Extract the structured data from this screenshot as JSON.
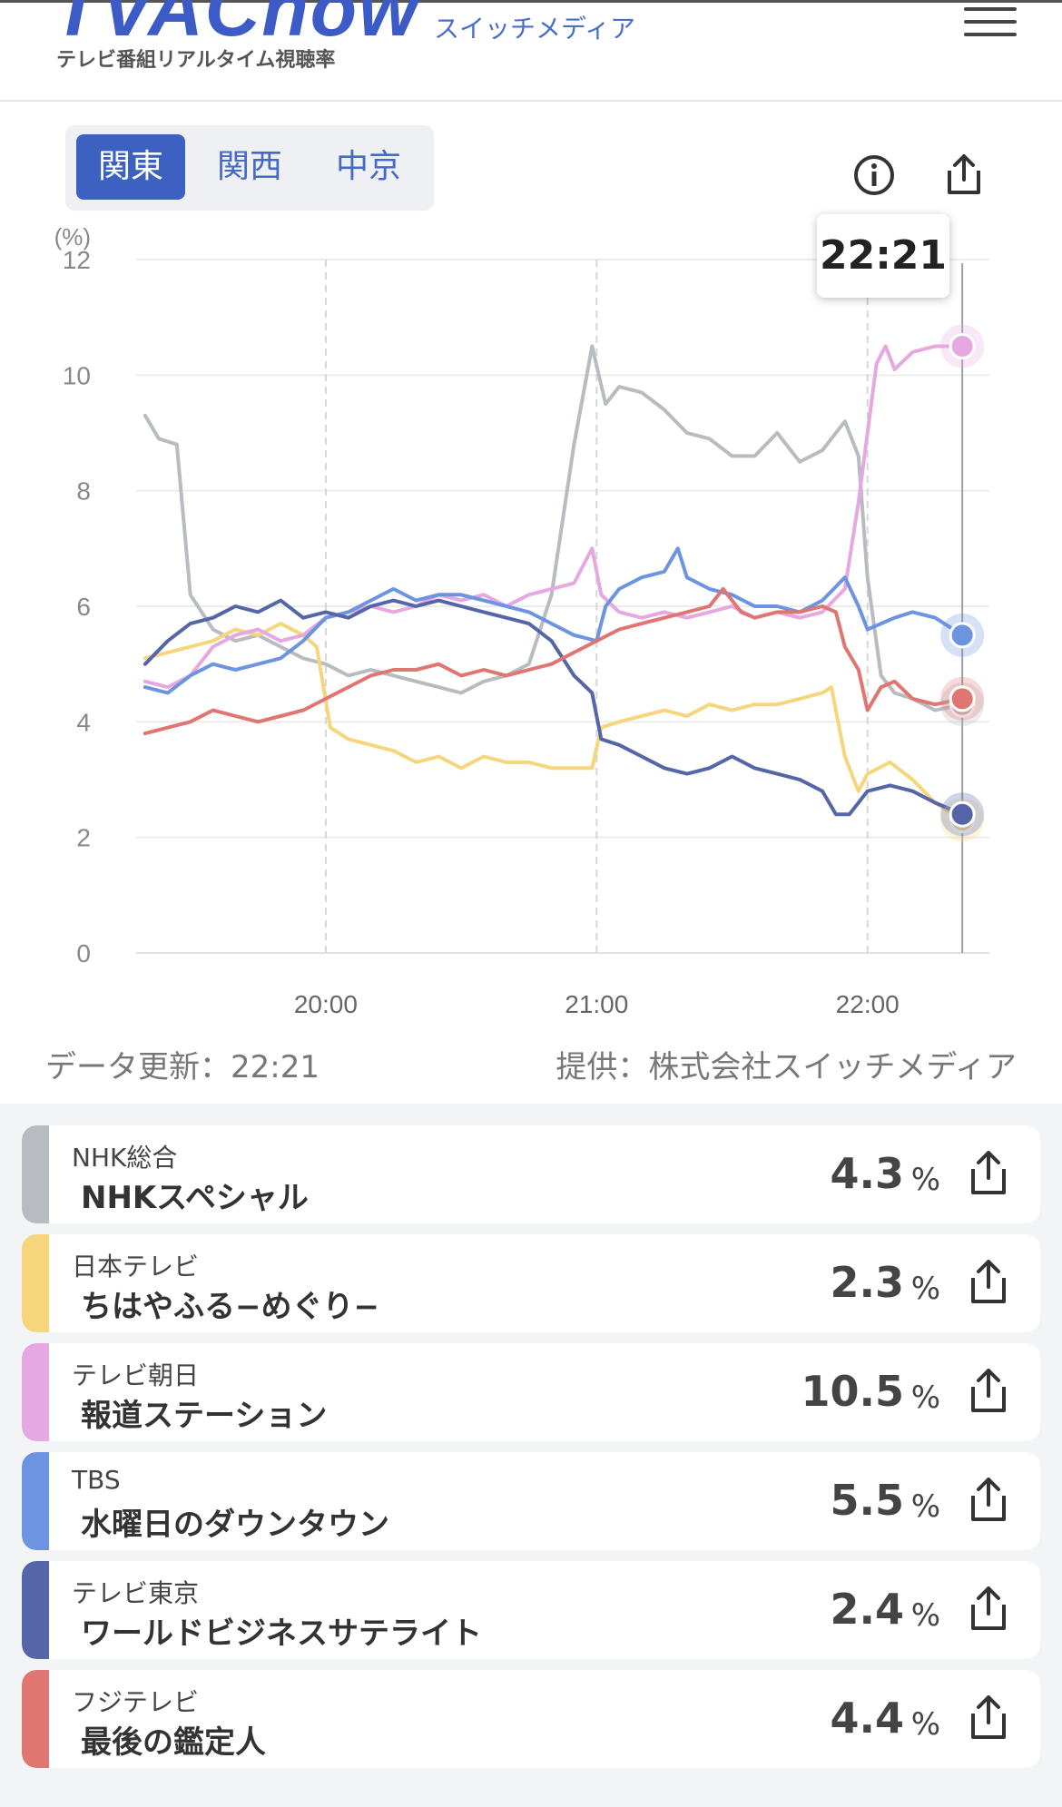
{
  "header": {
    "logo_text": "TVAChow",
    "logo_subtitle": "テレビ番組リアルタイム視聴率",
    "brand": "スイッチメディア"
  },
  "regions": [
    {
      "label": "関東",
      "active": true
    },
    {
      "label": "関西",
      "active": false
    },
    {
      "label": "中京",
      "active": false
    }
  ],
  "tooltip_time": "22:21",
  "chart_data": {
    "type": "line",
    "ylabel": "(%)",
    "ylim": [
      0,
      12
    ],
    "y_ticks": [
      "0",
      "2",
      "4",
      "6",
      "8",
      "10",
      "12"
    ],
    "x_ticks": [
      "20:00",
      "21:00",
      "22:00"
    ],
    "x_range": [
      "19:20",
      "22:21"
    ],
    "grid": true,
    "cursor": "22:21",
    "series": [
      {
        "name": "NHK総合",
        "color": "#b8bbbf",
        "points": [
          [
            "19:20",
            9.3
          ],
          [
            "19:23",
            8.9
          ],
          [
            "19:27",
            8.8
          ],
          [
            "19:30",
            6.2
          ],
          [
            "19:35",
            5.6
          ],
          [
            "19:40",
            5.4
          ],
          [
            "19:45",
            5.5
          ],
          [
            "19:50",
            5.3
          ],
          [
            "19:55",
            5.1
          ],
          [
            "20:00",
            5.0
          ],
          [
            "20:05",
            4.8
          ],
          [
            "20:10",
            4.9
          ],
          [
            "20:15",
            4.8
          ],
          [
            "20:20",
            4.7
          ],
          [
            "20:25",
            4.6
          ],
          [
            "20:30",
            4.5
          ],
          [
            "20:35",
            4.7
          ],
          [
            "20:40",
            4.8
          ],
          [
            "20:45",
            5.0
          ],
          [
            "20:50",
            6.2
          ],
          [
            "20:55",
            8.8
          ],
          [
            "20:59",
            10.5
          ],
          [
            "21:02",
            9.5
          ],
          [
            "21:05",
            9.8
          ],
          [
            "21:10",
            9.7
          ],
          [
            "21:15",
            9.4
          ],
          [
            "21:20",
            9.0
          ],
          [
            "21:25",
            8.9
          ],
          [
            "21:30",
            8.6
          ],
          [
            "21:35",
            8.6
          ],
          [
            "21:40",
            9.0
          ],
          [
            "21:45",
            8.5
          ],
          [
            "21:50",
            8.7
          ],
          [
            "21:55",
            9.2
          ],
          [
            "21:58",
            8.6
          ],
          [
            "22:00",
            6.5
          ],
          [
            "22:03",
            4.8
          ],
          [
            "22:06",
            4.5
          ],
          [
            "22:10",
            4.4
          ],
          [
            "22:15",
            4.2
          ],
          [
            "22:21",
            4.3
          ]
        ]
      },
      {
        "name": "日本テレビ",
        "color": "#f6d67d",
        "points": [
          [
            "19:20",
            5.1
          ],
          [
            "19:25",
            5.2
          ],
          [
            "19:30",
            5.3
          ],
          [
            "19:35",
            5.4
          ],
          [
            "19:40",
            5.6
          ],
          [
            "19:45",
            5.5
          ],
          [
            "19:50",
            5.7
          ],
          [
            "19:55",
            5.5
          ],
          [
            "19:58",
            5.3
          ],
          [
            "20:01",
            3.9
          ],
          [
            "20:05",
            3.7
          ],
          [
            "20:10",
            3.6
          ],
          [
            "20:15",
            3.5
          ],
          [
            "20:20",
            3.3
          ],
          [
            "20:25",
            3.4
          ],
          [
            "20:30",
            3.2
          ],
          [
            "20:35",
            3.4
          ],
          [
            "20:40",
            3.3
          ],
          [
            "20:45",
            3.3
          ],
          [
            "20:50",
            3.2
          ],
          [
            "20:55",
            3.2
          ],
          [
            "20:59",
            3.2
          ],
          [
            "21:01",
            3.9
          ],
          [
            "21:05",
            4.0
          ],
          [
            "21:10",
            4.1
          ],
          [
            "21:15",
            4.2
          ],
          [
            "21:20",
            4.1
          ],
          [
            "21:25",
            4.3
          ],
          [
            "21:30",
            4.2
          ],
          [
            "21:35",
            4.3
          ],
          [
            "21:40",
            4.3
          ],
          [
            "21:45",
            4.4
          ],
          [
            "21:50",
            4.5
          ],
          [
            "21:52",
            4.6
          ],
          [
            "21:55",
            3.4
          ],
          [
            "21:58",
            2.8
          ],
          [
            "22:00",
            3.1
          ],
          [
            "22:05",
            3.3
          ],
          [
            "22:10",
            3.0
          ],
          [
            "22:15",
            2.6
          ],
          [
            "22:21",
            2.3
          ]
        ]
      },
      {
        "name": "テレビ朝日",
        "color": "#e6a8e0",
        "points": [
          [
            "19:20",
            4.7
          ],
          [
            "19:25",
            4.6
          ],
          [
            "19:30",
            4.8
          ],
          [
            "19:35",
            5.3
          ],
          [
            "19:40",
            5.5
          ],
          [
            "19:45",
            5.6
          ],
          [
            "19:50",
            5.4
          ],
          [
            "19:55",
            5.5
          ],
          [
            "20:00",
            5.8
          ],
          [
            "20:05",
            5.9
          ],
          [
            "20:10",
            6.0
          ],
          [
            "20:15",
            5.9
          ],
          [
            "20:20",
            6.0
          ],
          [
            "20:25",
            6.2
          ],
          [
            "20:30",
            6.1
          ],
          [
            "20:35",
            6.2
          ],
          [
            "20:40",
            6.0
          ],
          [
            "20:45",
            6.2
          ],
          [
            "20:50",
            6.3
          ],
          [
            "20:55",
            6.4
          ],
          [
            "20:59",
            7.0
          ],
          [
            "21:01",
            6.2
          ],
          [
            "21:05",
            5.9
          ],
          [
            "21:10",
            5.8
          ],
          [
            "21:15",
            5.9
          ],
          [
            "21:20",
            5.8
          ],
          [
            "21:25",
            5.9
          ],
          [
            "21:30",
            6.0
          ],
          [
            "21:35",
            5.8
          ],
          [
            "21:40",
            5.9
          ],
          [
            "21:45",
            5.8
          ],
          [
            "21:50",
            5.9
          ],
          [
            "21:55",
            6.3
          ],
          [
            "21:58",
            7.8
          ],
          [
            "22:00",
            9.0
          ],
          [
            "22:02",
            10.2
          ],
          [
            "22:04",
            10.5
          ],
          [
            "22:06",
            10.1
          ],
          [
            "22:10",
            10.4
          ],
          [
            "22:15",
            10.5
          ],
          [
            "22:21",
            10.5
          ]
        ]
      },
      {
        "name": "TBS",
        "color": "#6c94e0",
        "points": [
          [
            "19:20",
            4.6
          ],
          [
            "19:25",
            4.5
          ],
          [
            "19:30",
            4.8
          ],
          [
            "19:35",
            5.0
          ],
          [
            "19:40",
            4.9
          ],
          [
            "19:45",
            5.0
          ],
          [
            "19:50",
            5.1
          ],
          [
            "19:55",
            5.4
          ],
          [
            "20:00",
            5.8
          ],
          [
            "20:05",
            5.9
          ],
          [
            "20:10",
            6.1
          ],
          [
            "20:15",
            6.3
          ],
          [
            "20:20",
            6.1
          ],
          [
            "20:25",
            6.2
          ],
          [
            "20:30",
            6.2
          ],
          [
            "20:35",
            6.1
          ],
          [
            "20:40",
            6.0
          ],
          [
            "20:45",
            5.9
          ],
          [
            "20:50",
            5.7
          ],
          [
            "20:55",
            5.5
          ],
          [
            "21:00",
            5.4
          ],
          [
            "21:02",
            6.0
          ],
          [
            "21:05",
            6.3
          ],
          [
            "21:10",
            6.5
          ],
          [
            "21:15",
            6.6
          ],
          [
            "21:18",
            7.0
          ],
          [
            "21:20",
            6.5
          ],
          [
            "21:25",
            6.3
          ],
          [
            "21:30",
            6.2
          ],
          [
            "21:35",
            6.0
          ],
          [
            "21:40",
            6.0
          ],
          [
            "21:45",
            5.9
          ],
          [
            "21:50",
            6.1
          ],
          [
            "21:55",
            6.5
          ],
          [
            "21:58",
            6.0
          ],
          [
            "22:00",
            5.6
          ],
          [
            "22:03",
            5.7
          ],
          [
            "22:06",
            5.8
          ],
          [
            "22:10",
            5.9
          ],
          [
            "22:15",
            5.8
          ],
          [
            "22:21",
            5.5
          ]
        ]
      },
      {
        "name": "テレビ東京",
        "color": "#5566a8",
        "points": [
          [
            "19:20",
            5.0
          ],
          [
            "19:25",
            5.4
          ],
          [
            "19:30",
            5.7
          ],
          [
            "19:35",
            5.8
          ],
          [
            "19:40",
            6.0
          ],
          [
            "19:45",
            5.9
          ],
          [
            "19:50",
            6.1
          ],
          [
            "19:55",
            5.8
          ],
          [
            "20:00",
            5.9
          ],
          [
            "20:05",
            5.8
          ],
          [
            "20:10",
            6.0
          ],
          [
            "20:15",
            6.1
          ],
          [
            "20:20",
            6.0
          ],
          [
            "20:25",
            6.1
          ],
          [
            "20:30",
            6.0
          ],
          [
            "20:35",
            5.9
          ],
          [
            "20:40",
            5.8
          ],
          [
            "20:45",
            5.7
          ],
          [
            "20:50",
            5.4
          ],
          [
            "20:55",
            4.8
          ],
          [
            "20:59",
            4.5
          ],
          [
            "21:01",
            3.7
          ],
          [
            "21:05",
            3.6
          ],
          [
            "21:10",
            3.4
          ],
          [
            "21:15",
            3.2
          ],
          [
            "21:20",
            3.1
          ],
          [
            "21:25",
            3.2
          ],
          [
            "21:30",
            3.4
          ],
          [
            "21:35",
            3.2
          ],
          [
            "21:40",
            3.1
          ],
          [
            "21:45",
            3.0
          ],
          [
            "21:50",
            2.8
          ],
          [
            "21:53",
            2.4
          ],
          [
            "21:56",
            2.4
          ],
          [
            "22:00",
            2.8
          ],
          [
            "22:05",
            2.9
          ],
          [
            "22:10",
            2.8
          ],
          [
            "22:15",
            2.6
          ],
          [
            "22:21",
            2.4
          ]
        ]
      },
      {
        "name": "フジテレビ",
        "color": "#e07672",
        "points": [
          [
            "19:20",
            3.8
          ],
          [
            "19:25",
            3.9
          ],
          [
            "19:30",
            4.0
          ],
          [
            "19:35",
            4.2
          ],
          [
            "19:40",
            4.1
          ],
          [
            "19:45",
            4.0
          ],
          [
            "19:50",
            4.1
          ],
          [
            "19:55",
            4.2
          ],
          [
            "20:00",
            4.4
          ],
          [
            "20:05",
            4.6
          ],
          [
            "20:10",
            4.8
          ],
          [
            "20:15",
            4.9
          ],
          [
            "20:20",
            4.9
          ],
          [
            "20:25",
            5.0
          ],
          [
            "20:30",
            4.8
          ],
          [
            "20:35",
            4.9
          ],
          [
            "20:40",
            4.8
          ],
          [
            "20:45",
            4.9
          ],
          [
            "20:50",
            5.0
          ],
          [
            "20:55",
            5.2
          ],
          [
            "21:00",
            5.4
          ],
          [
            "21:05",
            5.6
          ],
          [
            "21:10",
            5.7
          ],
          [
            "21:15",
            5.8
          ],
          [
            "21:20",
            5.9
          ],
          [
            "21:25",
            6.0
          ],
          [
            "21:28",
            6.3
          ],
          [
            "21:32",
            5.9
          ],
          [
            "21:35",
            5.8
          ],
          [
            "21:40",
            5.9
          ],
          [
            "21:45",
            5.9
          ],
          [
            "21:50",
            6.0
          ],
          [
            "21:53",
            5.9
          ],
          [
            "21:55",
            5.3
          ],
          [
            "21:58",
            4.9
          ],
          [
            "22:00",
            4.2
          ],
          [
            "22:03",
            4.6
          ],
          [
            "22:06",
            4.7
          ],
          [
            "22:10",
            4.4
          ],
          [
            "22:15",
            4.3
          ],
          [
            "22:21",
            4.4
          ]
        ]
      }
    ]
  },
  "footer": {
    "update": "データ更新：22:21",
    "provider": "提供：株式会社スイッチメディア"
  },
  "programs": [
    {
      "station": "NHK総合",
      "title": "NHKスペシャル",
      "rating": "4.3",
      "unit": "%",
      "color": "#b8bbbf"
    },
    {
      "station": "日本テレビ",
      "title": "ちはやふる−めぐり−",
      "rating": "2.3",
      "unit": "%",
      "color": "#f6d67d"
    },
    {
      "station": "テレビ朝日",
      "title": "報道ステーション",
      "rating": "10.5",
      "unit": "%",
      "color": "#e6a8e0"
    },
    {
      "station": "TBS",
      "title": "水曜日のダウンタウン",
      "rating": "5.5",
      "unit": "%",
      "color": "#6c94e0"
    },
    {
      "station": "テレビ東京",
      "title": "ワールドビジネスサテライト",
      "rating": "2.4",
      "unit": "%",
      "color": "#5566a8"
    },
    {
      "station": "フジテレビ",
      "title": "最後の鑑定人",
      "rating": "4.4",
      "unit": "%",
      "color": "#e07672"
    }
  ]
}
